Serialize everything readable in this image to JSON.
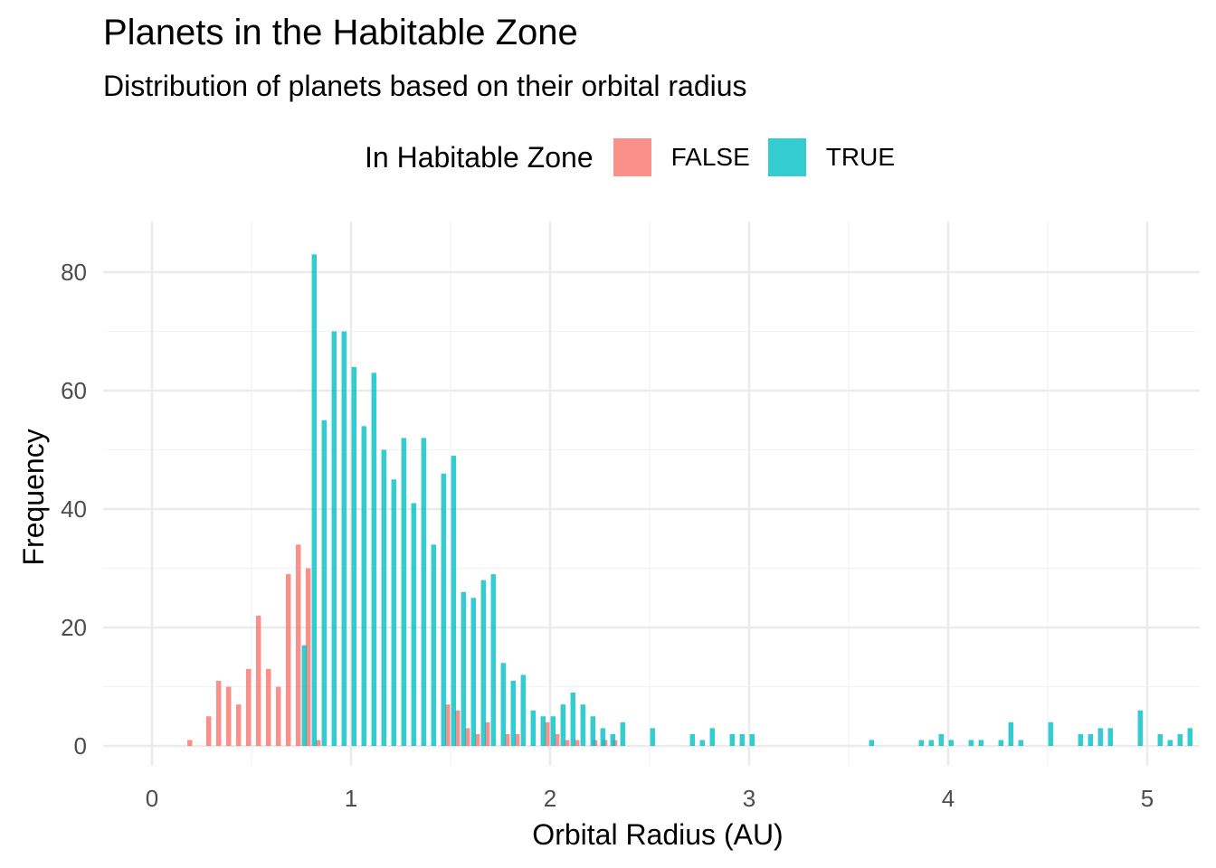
{
  "chart_data": {
    "type": "bar",
    "title": "Planets in the Habitable Zone",
    "subtitle": "Distribution of planets based on their orbital radius",
    "xlabel": "Orbital Radius (AU)",
    "ylabel": "Frequency",
    "xlim": [
      -0.25,
      5.25
    ],
    "ylim": [
      0,
      87
    ],
    "x_ticks": [
      0,
      1,
      2,
      3,
      4,
      5
    ],
    "y_ticks": [
      0,
      20,
      40,
      60,
      80
    ],
    "grid": true,
    "legend": {
      "title": "In Habitable Zone",
      "position": "top"
    },
    "bar_width": 0.025,
    "series": [
      {
        "name": "FALSE",
        "color": "#F8766D",
        "points": [
          {
            "x": 0.19,
            "y": 1
          },
          {
            "x": 0.285,
            "y": 5
          },
          {
            "x": 0.335,
            "y": 11
          },
          {
            "x": 0.385,
            "y": 10
          },
          {
            "x": 0.435,
            "y": 7
          },
          {
            "x": 0.485,
            "y": 13
          },
          {
            "x": 0.535,
            "y": 22
          },
          {
            "x": 0.585,
            "y": 13
          },
          {
            "x": 0.635,
            "y": 10
          },
          {
            "x": 0.685,
            "y": 29
          },
          {
            "x": 0.735,
            "y": 34
          },
          {
            "x": 0.785,
            "y": 30
          },
          {
            "x": 0.835,
            "y": 1
          },
          {
            "x": 1.485,
            "y": 7
          },
          {
            "x": 1.535,
            "y": 6
          },
          {
            "x": 1.585,
            "y": 3
          },
          {
            "x": 1.635,
            "y": 2
          },
          {
            "x": 1.685,
            "y": 4
          },
          {
            "x": 1.785,
            "y": 2
          },
          {
            "x": 1.835,
            "y": 2
          },
          {
            "x": 1.985,
            "y": 4
          },
          {
            "x": 2.035,
            "y": 2
          },
          {
            "x": 2.085,
            "y": 1
          },
          {
            "x": 2.135,
            "y": 1
          },
          {
            "x": 2.225,
            "y": 1
          },
          {
            "x": 2.275,
            "y": 1
          },
          {
            "x": 2.325,
            "y": 1
          }
        ]
      },
      {
        "name": "TRUE",
        "color": "#00BFC4",
        "points": [
          {
            "x": 0.765,
            "y": 17
          },
          {
            "x": 0.815,
            "y": 83
          },
          {
            "x": 0.865,
            "y": 55
          },
          {
            "x": 0.915,
            "y": 70
          },
          {
            "x": 0.965,
            "y": 70
          },
          {
            "x": 1.015,
            "y": 64
          },
          {
            "x": 1.065,
            "y": 54
          },
          {
            "x": 1.115,
            "y": 63
          },
          {
            "x": 1.165,
            "y": 50
          },
          {
            "x": 1.215,
            "y": 45
          },
          {
            "x": 1.265,
            "y": 52
          },
          {
            "x": 1.315,
            "y": 41
          },
          {
            "x": 1.365,
            "y": 52
          },
          {
            "x": 1.415,
            "y": 34
          },
          {
            "x": 1.465,
            "y": 46
          },
          {
            "x": 1.515,
            "y": 49
          },
          {
            "x": 1.565,
            "y": 26
          },
          {
            "x": 1.615,
            "y": 25
          },
          {
            "x": 1.665,
            "y": 28
          },
          {
            "x": 1.715,
            "y": 29
          },
          {
            "x": 1.765,
            "y": 14
          },
          {
            "x": 1.815,
            "y": 11
          },
          {
            "x": 1.865,
            "y": 12
          },
          {
            "x": 1.915,
            "y": 6
          },
          {
            "x": 1.965,
            "y": 5
          },
          {
            "x": 2.015,
            "y": 5
          },
          {
            "x": 2.065,
            "y": 7
          },
          {
            "x": 2.115,
            "y": 9
          },
          {
            "x": 2.165,
            "y": 7
          },
          {
            "x": 2.215,
            "y": 5
          },
          {
            "x": 2.265,
            "y": 3
          },
          {
            "x": 2.315,
            "y": 2
          },
          {
            "x": 2.365,
            "y": 4
          },
          {
            "x": 2.515,
            "y": 3
          },
          {
            "x": 2.715,
            "y": 2
          },
          {
            "x": 2.765,
            "y": 1
          },
          {
            "x": 2.815,
            "y": 3
          },
          {
            "x": 2.915,
            "y": 2
          },
          {
            "x": 2.965,
            "y": 2
          },
          {
            "x": 3.015,
            "y": 2
          },
          {
            "x": 3.615,
            "y": 1
          },
          {
            "x": 3.865,
            "y": 1
          },
          {
            "x": 3.915,
            "y": 1
          },
          {
            "x": 3.965,
            "y": 2
          },
          {
            "x": 4.015,
            "y": 1
          },
          {
            "x": 4.115,
            "y": 1
          },
          {
            "x": 4.165,
            "y": 1
          },
          {
            "x": 4.265,
            "y": 1
          },
          {
            "x": 4.315,
            "y": 4
          },
          {
            "x": 4.365,
            "y": 1
          },
          {
            "x": 4.515,
            "y": 4
          },
          {
            "x": 4.665,
            "y": 2
          },
          {
            "x": 4.715,
            "y": 2
          },
          {
            "x": 4.765,
            "y": 3
          },
          {
            "x": 4.815,
            "y": 3
          },
          {
            "x": 4.965,
            "y": 6
          },
          {
            "x": 5.065,
            "y": 2
          },
          {
            "x": 5.115,
            "y": 1
          },
          {
            "x": 5.165,
            "y": 2
          },
          {
            "x": 5.215,
            "y": 3
          }
        ]
      }
    ]
  }
}
